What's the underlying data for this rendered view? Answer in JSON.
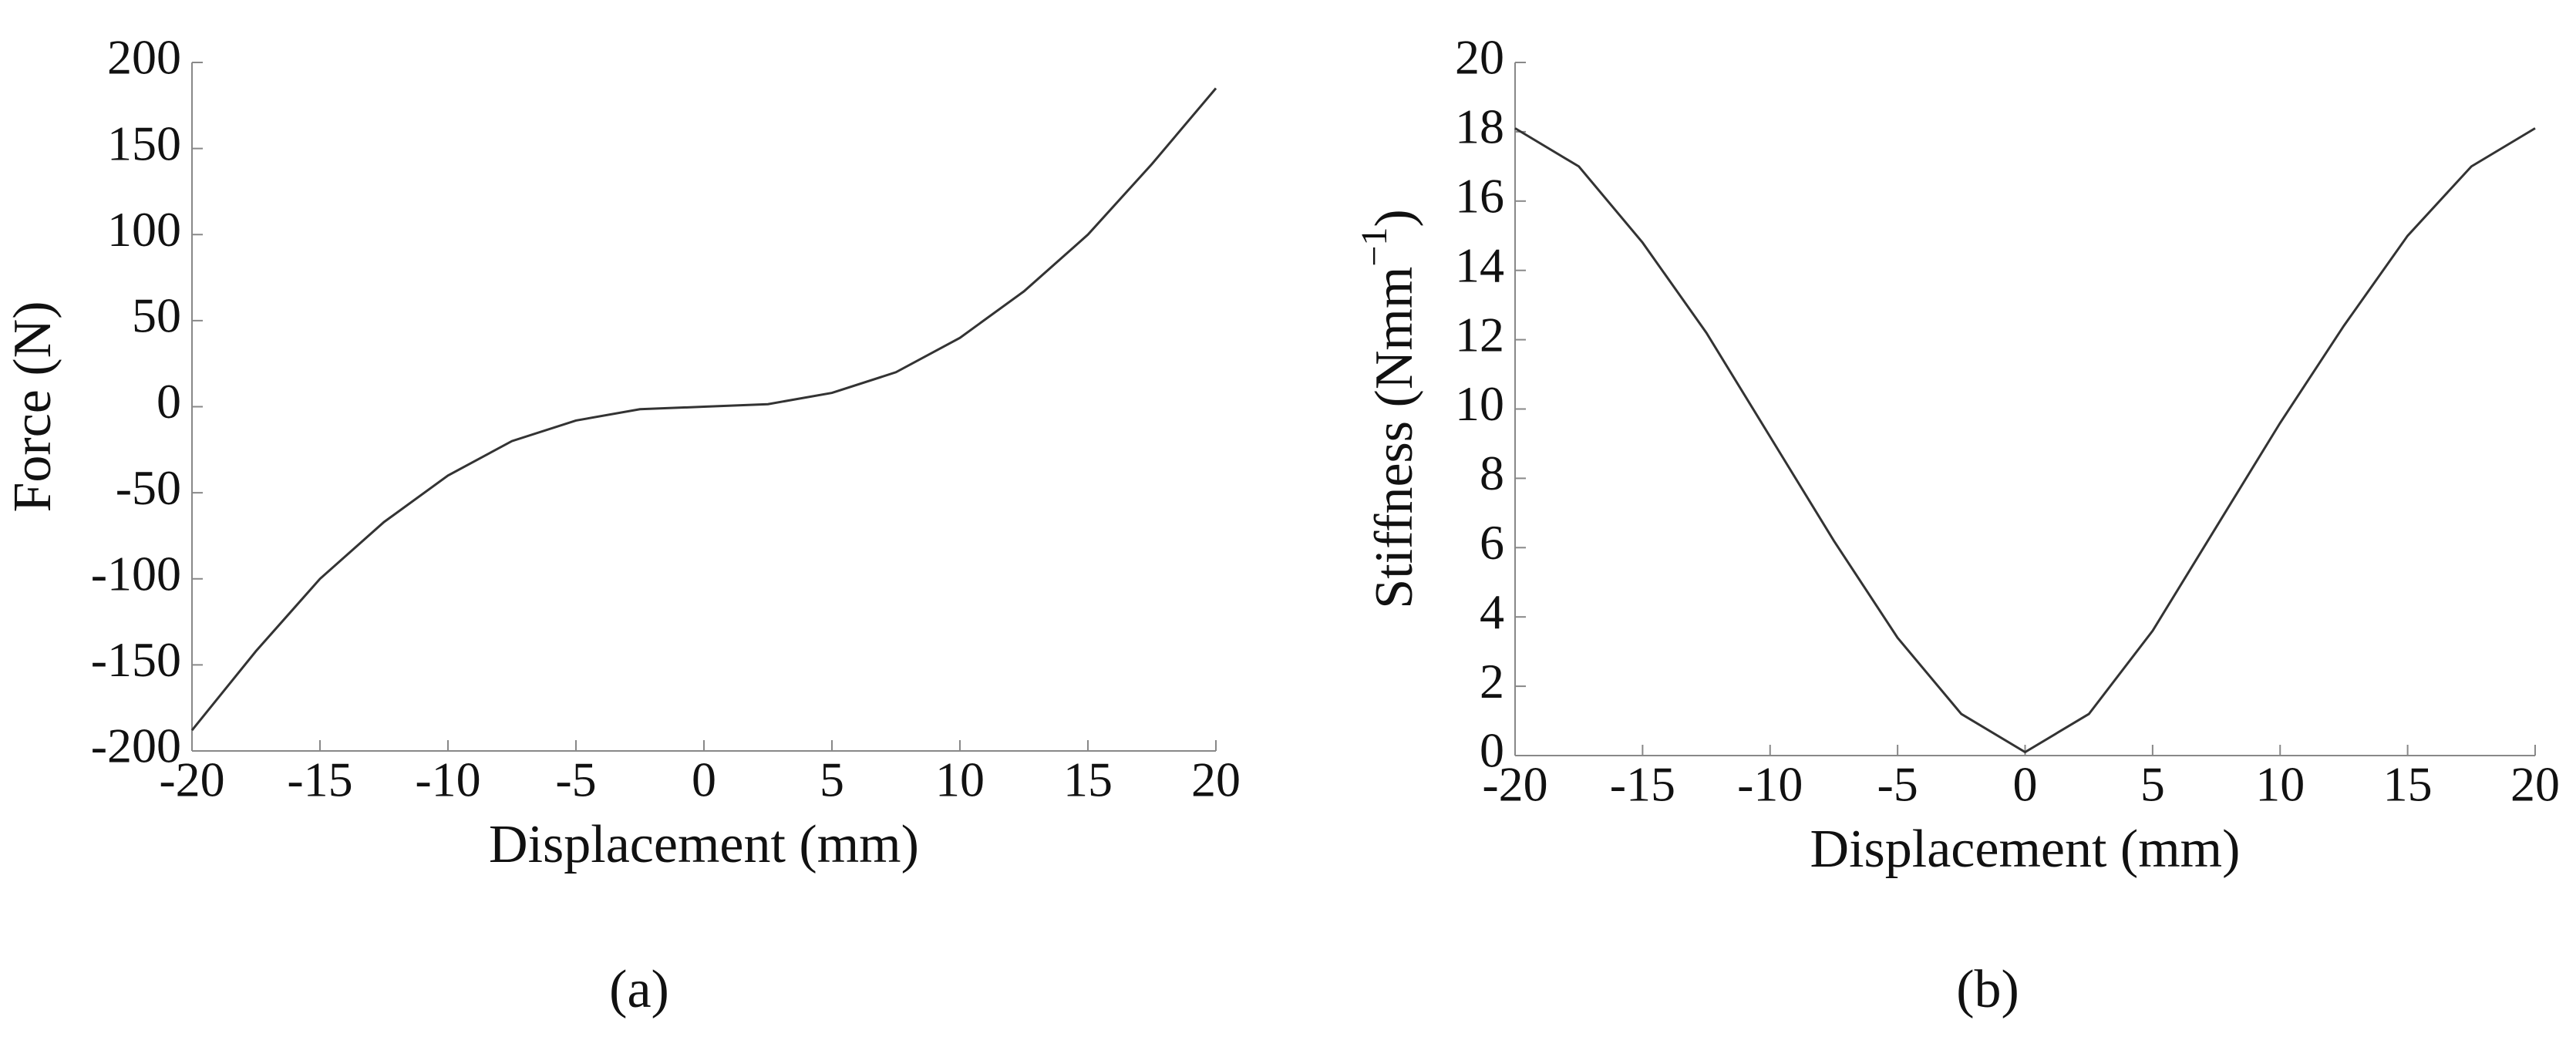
{
  "chart_data": [
    {
      "type": "line",
      "xlabel": "Displacement (mm)",
      "ylabel": "Force (N)",
      "caption": "(a)",
      "x": [
        -20,
        -17.5,
        -15,
        -12.5,
        -10,
        -7.5,
        -5,
        -2.5,
        0,
        2.5,
        5,
        7.5,
        10,
        12.5,
        15,
        17.5,
        20
      ],
      "values": [
        -188,
        -142,
        -100,
        -67,
        -40,
        -20,
        -8,
        -1.5,
        0,
        1.5,
        8,
        20,
        40,
        67,
        100,
        141,
        185
      ],
      "color": "#333333",
      "xlim": [
        -20,
        20
      ],
      "xticks": [
        -20,
        -15,
        -10,
        -5,
        0,
        5,
        10,
        15,
        20
      ],
      "ylim": [
        -200,
        200
      ],
      "yticks": [
        -200,
        -150,
        -100,
        -50,
        0,
        50,
        100,
        150,
        200
      ]
    },
    {
      "type": "line",
      "xlabel": "Displacement (mm)",
      "ylabel": "Stiffness (Nmm",
      "ylabel_sup": "−1",
      "ylabel_end": ")",
      "caption": "(b)",
      "x": [
        -20,
        -17.5,
        -15,
        -12.5,
        -10,
        -7.5,
        -5,
        -2.5,
        0,
        2.5,
        5,
        7.5,
        10,
        12.5,
        15,
        17.5,
        20
      ],
      "values": [
        18.1,
        17,
        14.8,
        12.2,
        9.2,
        6.2,
        3.4,
        1.2,
        0.1,
        1.2,
        3.6,
        6.6,
        9.6,
        12.4,
        15,
        17,
        18.1
      ],
      "color": "#333333",
      "xlim": [
        -20,
        20
      ],
      "xticks": [
        -20,
        -15,
        -10,
        -5,
        0,
        5,
        10,
        15,
        20
      ],
      "ylim": [
        0,
        20
      ],
      "yticks": [
        0,
        2,
        4,
        6,
        8,
        10,
        12,
        14,
        16,
        18,
        20
      ]
    }
  ]
}
